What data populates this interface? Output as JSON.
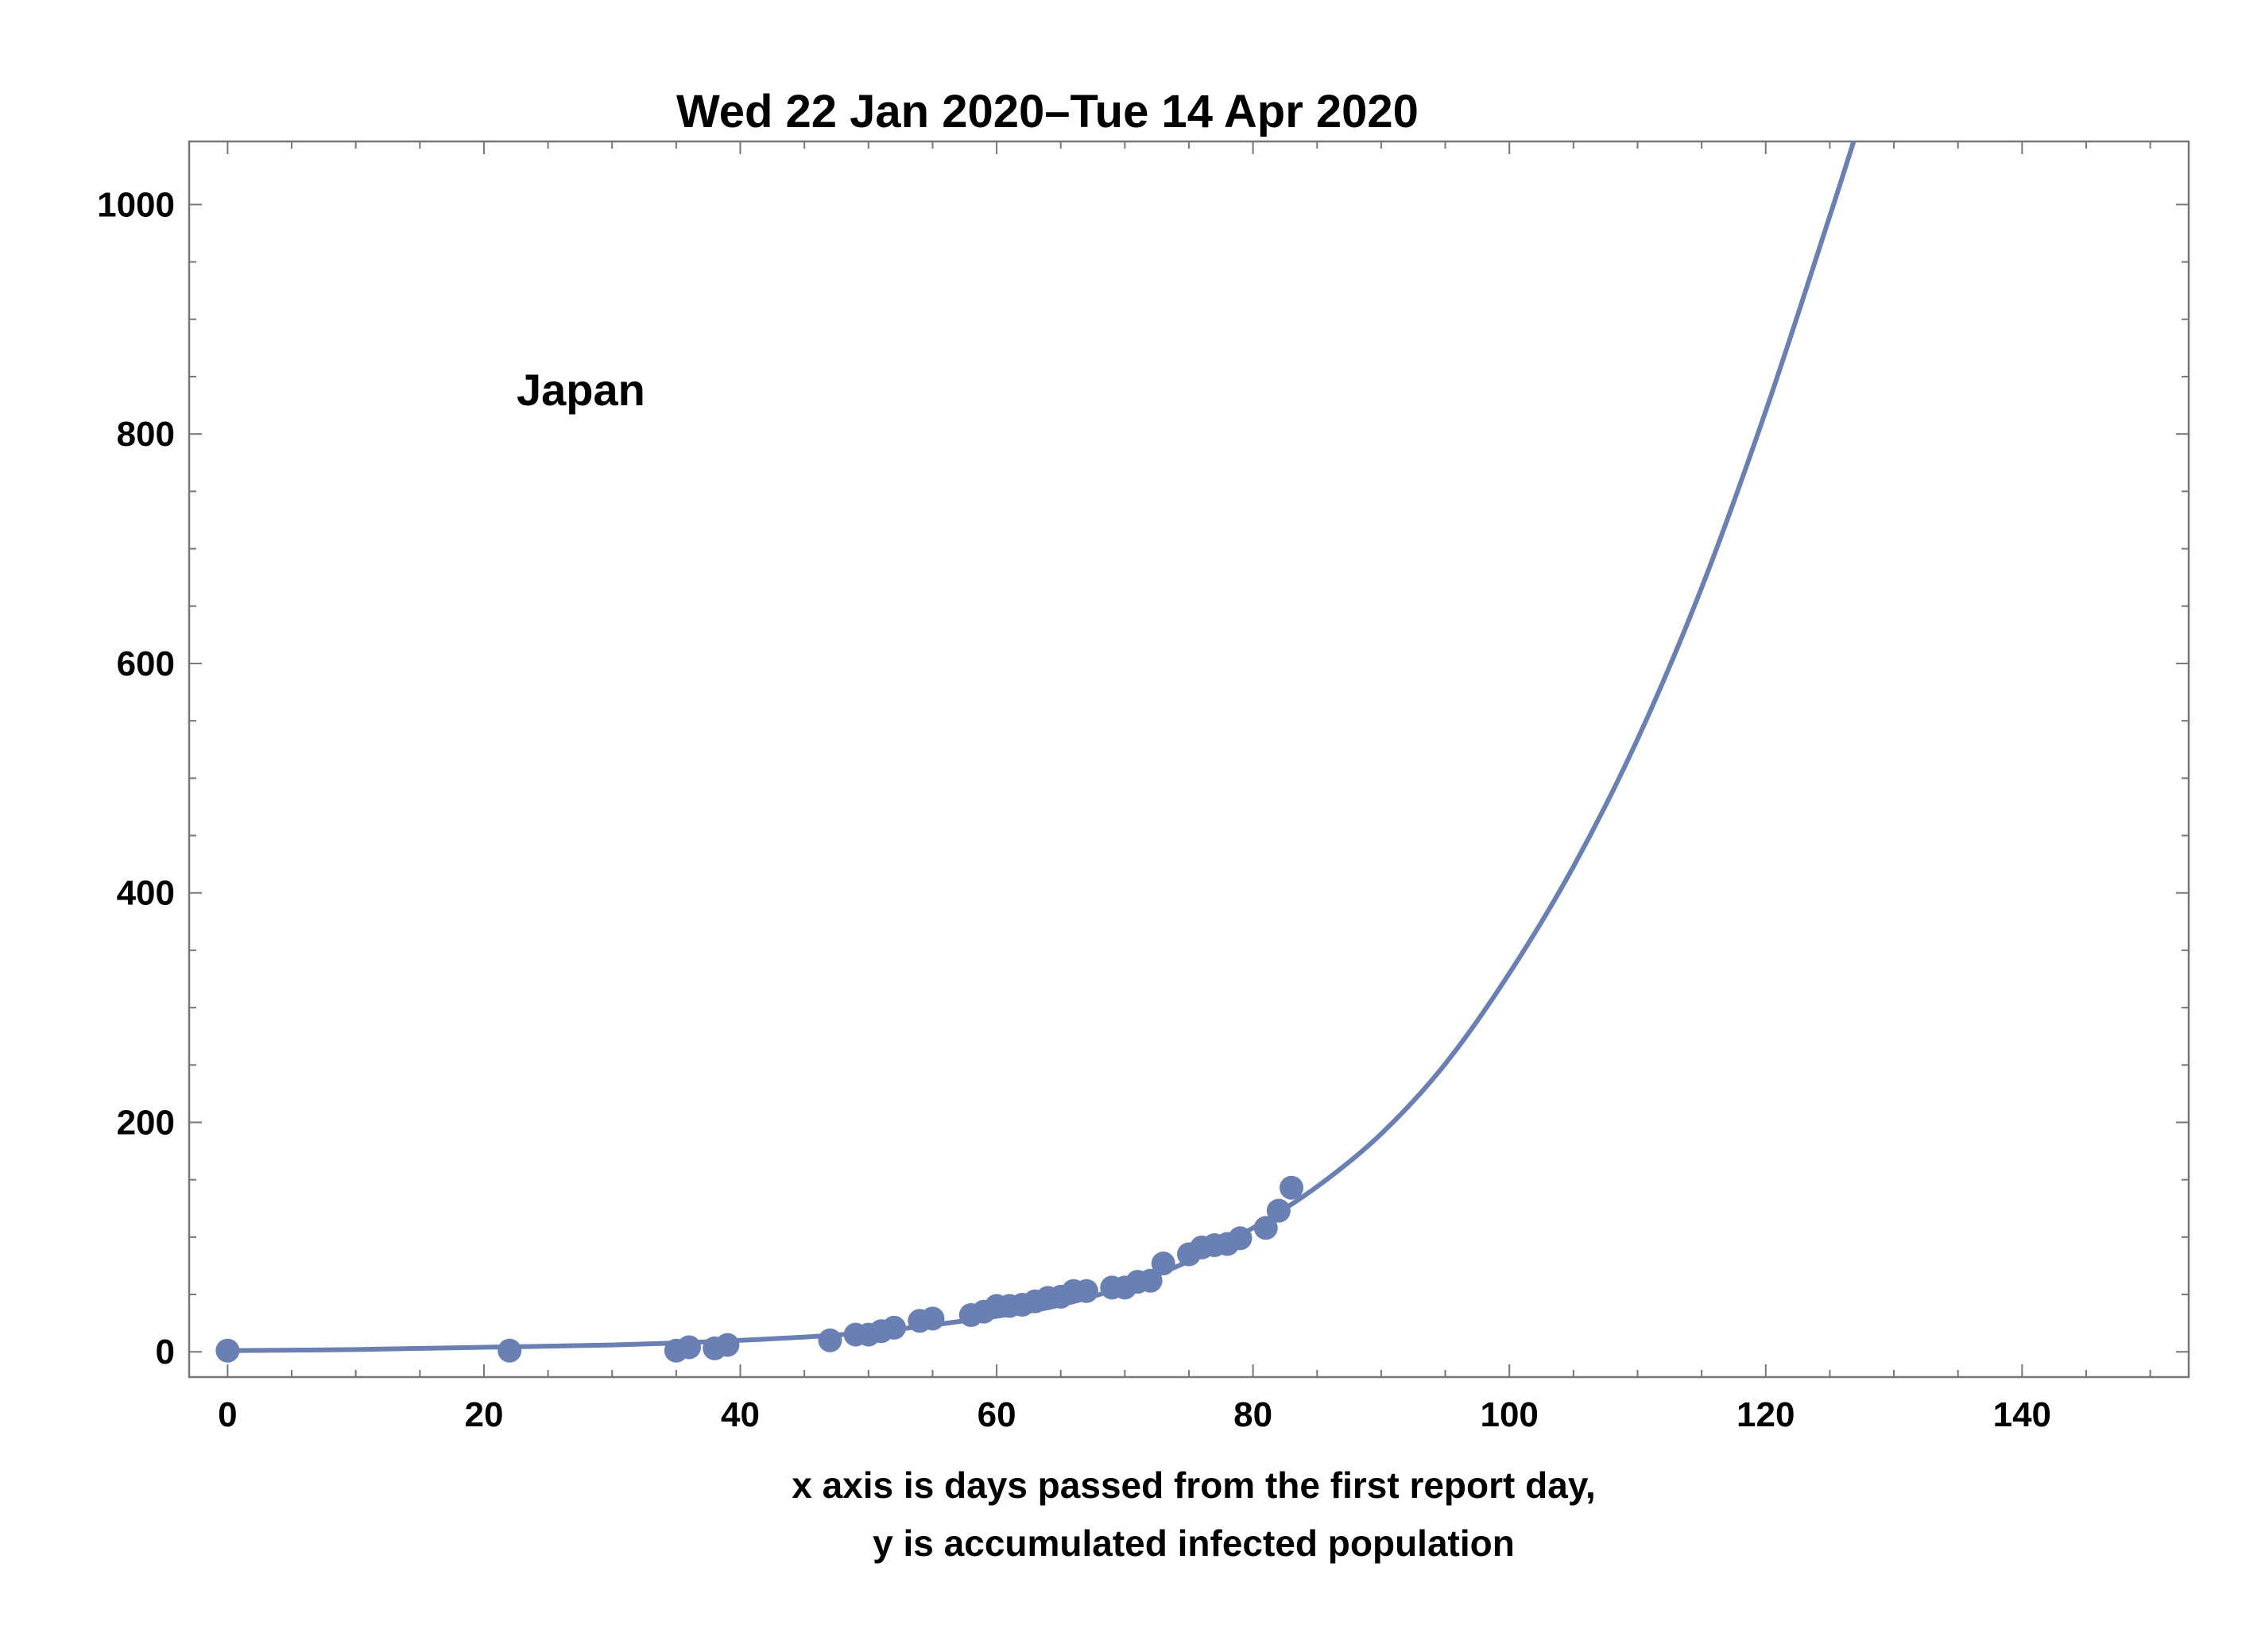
{
  "chart_data": {
    "type": "scatter",
    "title": "Wed 22 Jan 2020–Tue 14 Apr 2020",
    "xlabel_lines": [
      "x axis is days passed from the first report day,",
      "y is accumulated infected population"
    ],
    "annotation": "Japan",
    "xlim": [
      -3,
      153
    ],
    "ylim": [
      -22,
      1055
    ],
    "x_ticks": [
      0,
      20,
      40,
      60,
      80,
      100,
      120,
      140
    ],
    "y_ticks": [
      0,
      200,
      400,
      600,
      800,
      1000
    ],
    "grid": false,
    "colors": {
      "series": "#6a7fb2",
      "frame": "#777777"
    },
    "series": [
      {
        "kind": "points",
        "x": [
          0,
          22,
          35,
          36,
          38,
          39,
          47,
          49,
          50,
          51,
          52,
          54,
          55,
          58,
          59,
          60,
          61,
          62,
          63,
          64,
          65,
          66,
          67,
          69,
          70,
          71,
          72,
          73,
          75,
          76,
          77,
          78,
          79,
          81,
          82,
          83
        ],
        "y": [
          1,
          1,
          1,
          4,
          3,
          6,
          10,
          15,
          15,
          18,
          21,
          27,
          29,
          32,
          35,
          40,
          40,
          41,
          44,
          47,
          48,
          53,
          53,
          56,
          56,
          61,
          62,
          77,
          85,
          91,
          93,
          94,
          99,
          108,
          123,
          143
        ]
      },
      {
        "kind": "line",
        "x": [
          0,
          10,
          20,
          30,
          40,
          50,
          60,
          65,
          70,
          75,
          80,
          85,
          90,
          95,
          100,
          105,
          110,
          115,
          120,
          125,
          127
        ],
        "y": [
          1,
          2,
          4,
          6,
          10,
          17,
          31,
          41,
          57,
          79,
          108,
          144,
          190,
          251,
          330,
          423,
          534,
          666,
          820,
          990,
          1060
        ]
      }
    ]
  }
}
